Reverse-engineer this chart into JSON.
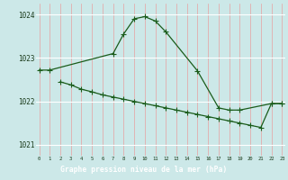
{
  "series1_x": [
    0,
    1,
    7,
    8,
    9,
    10,
    11,
    12,
    15,
    17,
    18,
    19,
    22,
    23
  ],
  "series1_y": [
    1022.72,
    1022.72,
    1023.1,
    1023.55,
    1023.9,
    1023.95,
    1023.85,
    1023.6,
    1022.7,
    1021.85,
    1021.8,
    1021.8,
    1021.95,
    1021.95
  ],
  "series2_x": [
    2,
    3,
    4,
    5,
    6,
    7,
    8,
    9,
    10,
    11,
    12,
    13,
    14,
    15,
    16,
    17,
    18,
    19,
    20,
    21,
    22,
    23
  ],
  "series2_y": [
    1022.45,
    1022.38,
    1022.28,
    1022.22,
    1022.15,
    1022.1,
    1022.05,
    1022.0,
    1021.95,
    1021.9,
    1021.85,
    1021.8,
    1021.75,
    1021.7,
    1021.65,
    1021.6,
    1021.55,
    1021.5,
    1021.45,
    1021.4,
    1021.95,
    1021.95
  ],
  "yticks": [
    1021,
    1022,
    1023,
    1024
  ],
  "xticks": [
    0,
    1,
    2,
    3,
    4,
    5,
    6,
    7,
    8,
    9,
    10,
    11,
    12,
    13,
    14,
    15,
    16,
    17,
    18,
    19,
    20,
    21,
    22,
    23
  ],
  "xlabel_text": "Graphe pression niveau de la mer (hPa)",
  "bg_color": "#cce8e8",
  "line_color": "#1a5c1a",
  "grid_v_color": "#e8a0a0",
  "grid_h_color": "#ffffff",
  "title_bar_color": "#2d7a2d",
  "title_text_color": "#ffffff",
  "ylim": [
    1020.75,
    1024.25
  ],
  "xlim": [
    -0.3,
    23.3
  ],
  "figw": 3.2,
  "figh": 2.0,
  "dpi": 100
}
